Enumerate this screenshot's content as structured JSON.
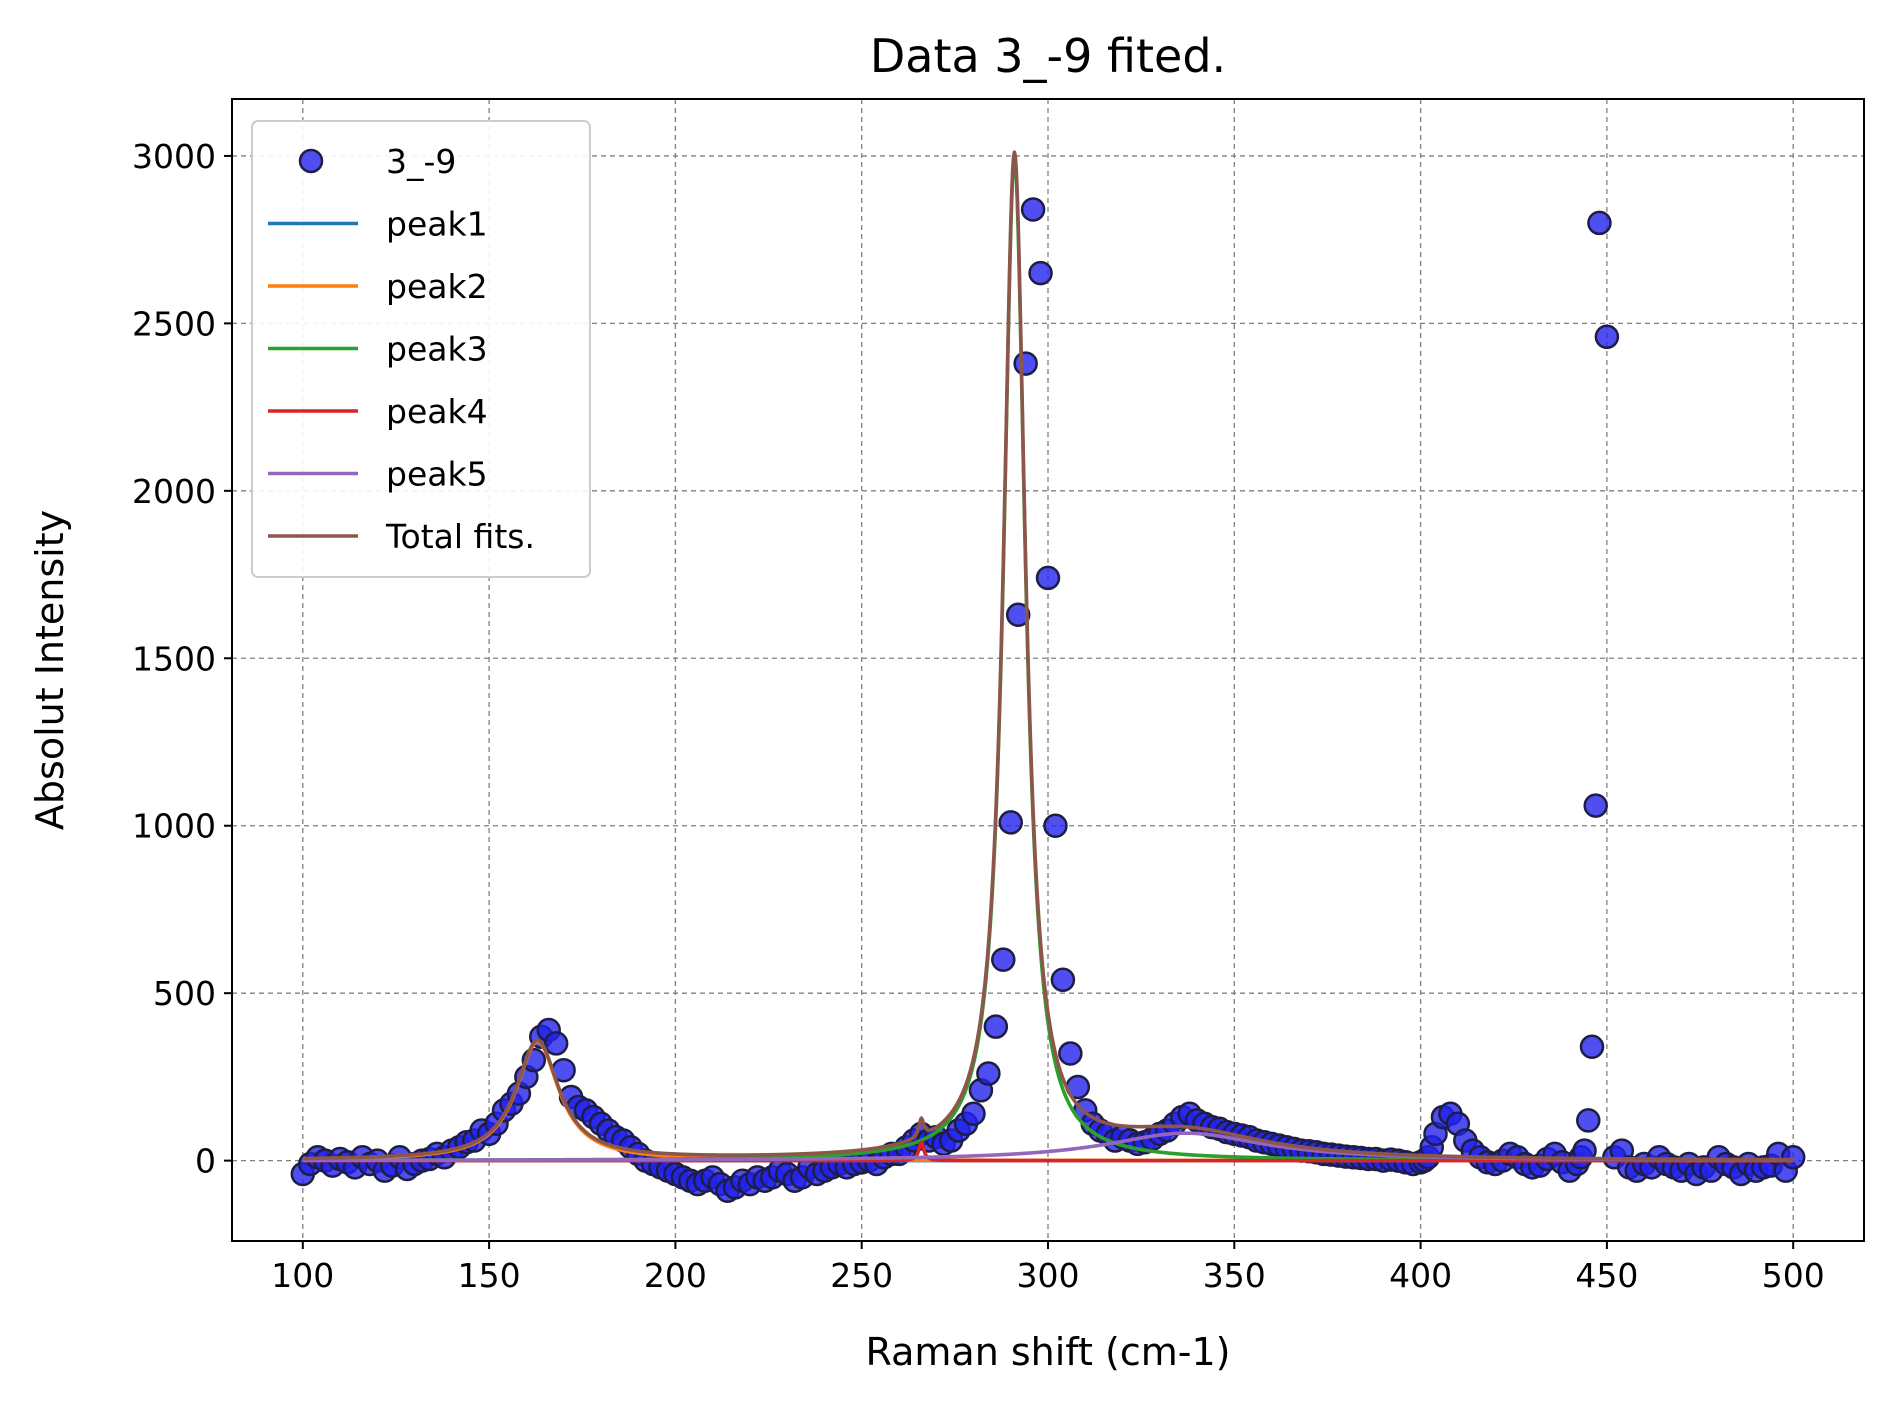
{
  "chart_data": {
    "type": "scatter",
    "title": "Data 3_-9 fited.",
    "xlabel": "Raman shift (cm-1)",
    "ylabel": "Absolut Intensity",
    "xlim": [
      81,
      519
    ],
    "ylim": [
      -240,
      3170
    ],
    "xticks": [
      100,
      150,
      200,
      250,
      300,
      350,
      400,
      450,
      500
    ],
    "yticks": [
      0,
      500,
      1000,
      1500,
      2000,
      2500,
      3000
    ],
    "grid": true,
    "legend_position": "upper-left",
    "colors": {
      "scatter_fill": "#2222ee",
      "scatter_edge": "#1e1e44",
      "peak1": "#1f77b4",
      "peak2": "#ff7f0e",
      "peak3": "#2ca02c",
      "peak4": "#d62728",
      "peak5": "#9467bd",
      "total": "#8c564b"
    },
    "scatter": {
      "name": "3_-9",
      "x": [
        100,
        102,
        104,
        106,
        108,
        110,
        112,
        114,
        116,
        118,
        120,
        122,
        124,
        126,
        128,
        130,
        132,
        134,
        136,
        138,
        140,
        142,
        144,
        146,
        148,
        150,
        152,
        154,
        156,
        158,
        160,
        162,
        164,
        166,
        168,
        170,
        172,
        174,
        176,
        178,
        180,
        182,
        184,
        186,
        188,
        190,
        192,
        194,
        196,
        198,
        200,
        202,
        204,
        206,
        208,
        210,
        212,
        214,
        216,
        218,
        220,
        222,
        224,
        226,
        228,
        230,
        232,
        234,
        236,
        238,
        240,
        242,
        244,
        246,
        248,
        250,
        252,
        254,
        256,
        258,
        260,
        262,
        264,
        266,
        268,
        270,
        272,
        274,
        276,
        278,
        280,
        282,
        284,
        286,
        288,
        290,
        292,
        294,
        296,
        298,
        300,
        302,
        304,
        306,
        308,
        310,
        312,
        314,
        316,
        318,
        320,
        322,
        324,
        326,
        328,
        330,
        332,
        334,
        336,
        338,
        340,
        342,
        344,
        346,
        348,
        350,
        352,
        354,
        356,
        358,
        360,
        362,
        364,
        366,
        368,
        370,
        372,
        374,
        376,
        378,
        380,
        382,
        384,
        386,
        388,
        390,
        392,
        394,
        396,
        398,
        400,
        401,
        402,
        403,
        404,
        406,
        408,
        410,
        412,
        414,
        416,
        418,
        420,
        422,
        424,
        426,
        428,
        430,
        432,
        434,
        436,
        438,
        440,
        442,
        443,
        444,
        445,
        446,
        447,
        448,
        450,
        452,
        454,
        456,
        458,
        460,
        462,
        464,
        466,
        468,
        470,
        472,
        474,
        476,
        478,
        480,
        482,
        484,
        486,
        488,
        490,
        492,
        494,
        496,
        498,
        500
      ],
      "y": [
        -40,
        -10,
        10,
        0,
        -15,
        5,
        -5,
        -20,
        10,
        -10,
        0,
        -30,
        -15,
        10,
        -25,
        -10,
        0,
        5,
        20,
        10,
        30,
        40,
        55,
        60,
        90,
        80,
        110,
        150,
        170,
        200,
        250,
        300,
        370,
        390,
        350,
        270,
        190,
        160,
        150,
        130,
        110,
        90,
        70,
        60,
        40,
        20,
        0,
        -10,
        -20,
        -30,
        -40,
        -50,
        -60,
        -70,
        -60,
        -50,
        -70,
        -90,
        -80,
        -60,
        -70,
        -50,
        -60,
        -50,
        -30,
        -40,
        -60,
        -50,
        -20,
        -40,
        -30,
        -20,
        -10,
        -20,
        -10,
        -5,
        0,
        -10,
        10,
        20,
        20,
        40,
        60,
        80,
        60,
        70,
        50,
        60,
        90,
        110,
        140,
        210,
        260,
        400,
        600,
        1010,
        1630,
        2380,
        2840,
        2650,
        1740,
        1000,
        540,
        320,
        220,
        150,
        110,
        90,
        80,
        60,
        70,
        60,
        50,
        55,
        65,
        80,
        90,
        110,
        130,
        140,
        120,
        110,
        100,
        95,
        85,
        80,
        75,
        70,
        60,
        55,
        50,
        45,
        40,
        35,
        30,
        28,
        25,
        20,
        18,
        15,
        12,
        10,
        8,
        5,
        5,
        0,
        3,
        0,
        -5,
        -10,
        -5,
        0,
        10,
        40,
        80,
        130,
        140,
        110,
        60,
        30,
        10,
        -5,
        -10,
        0,
        20,
        10,
        -10,
        -20,
        -15,
        5,
        20,
        -5,
        -30,
        -10,
        10,
        30,
        120,
        340,
        1060,
        2800,
        2460,
        10,
        30,
        -20,
        -30,
        -10,
        -20,
        10,
        -10,
        -20,
        -30,
        -10,
        -40,
        -20,
        -30,
        10,
        -10,
        -20,
        -40,
        -10,
        -30,
        -20,
        -15,
        20,
        -30,
        10
      ]
    },
    "series": [
      {
        "name": "peak1",
        "model": "lorentzian",
        "center": 165,
        "amplitude": 0,
        "hwhm": 8
      },
      {
        "name": "peak2",
        "model": "lorentzian",
        "center": 163,
        "amplitude": 355,
        "hwhm": 7
      },
      {
        "name": "peak3",
        "model": "lorentzian",
        "center": 291,
        "amplitude": 2990,
        "hwhm": 3.6
      },
      {
        "name": "peak4",
        "model": "lorentzian",
        "center": 266,
        "amplitude": 55,
        "hwhm": 0.8
      },
      {
        "name": "peak5",
        "model": "lorentzian",
        "center": 337,
        "amplitude": 82,
        "hwhm": 26
      },
      {
        "name": "Total fits.",
        "model": "sum",
        "components": [
          "peak1",
          "peak2",
          "peak3",
          "peak4",
          "peak5"
        ]
      }
    ],
    "legend": [
      "3_-9",
      "peak1",
      "peak2",
      "peak3",
      "peak4",
      "peak5",
      "Total fits."
    ]
  }
}
